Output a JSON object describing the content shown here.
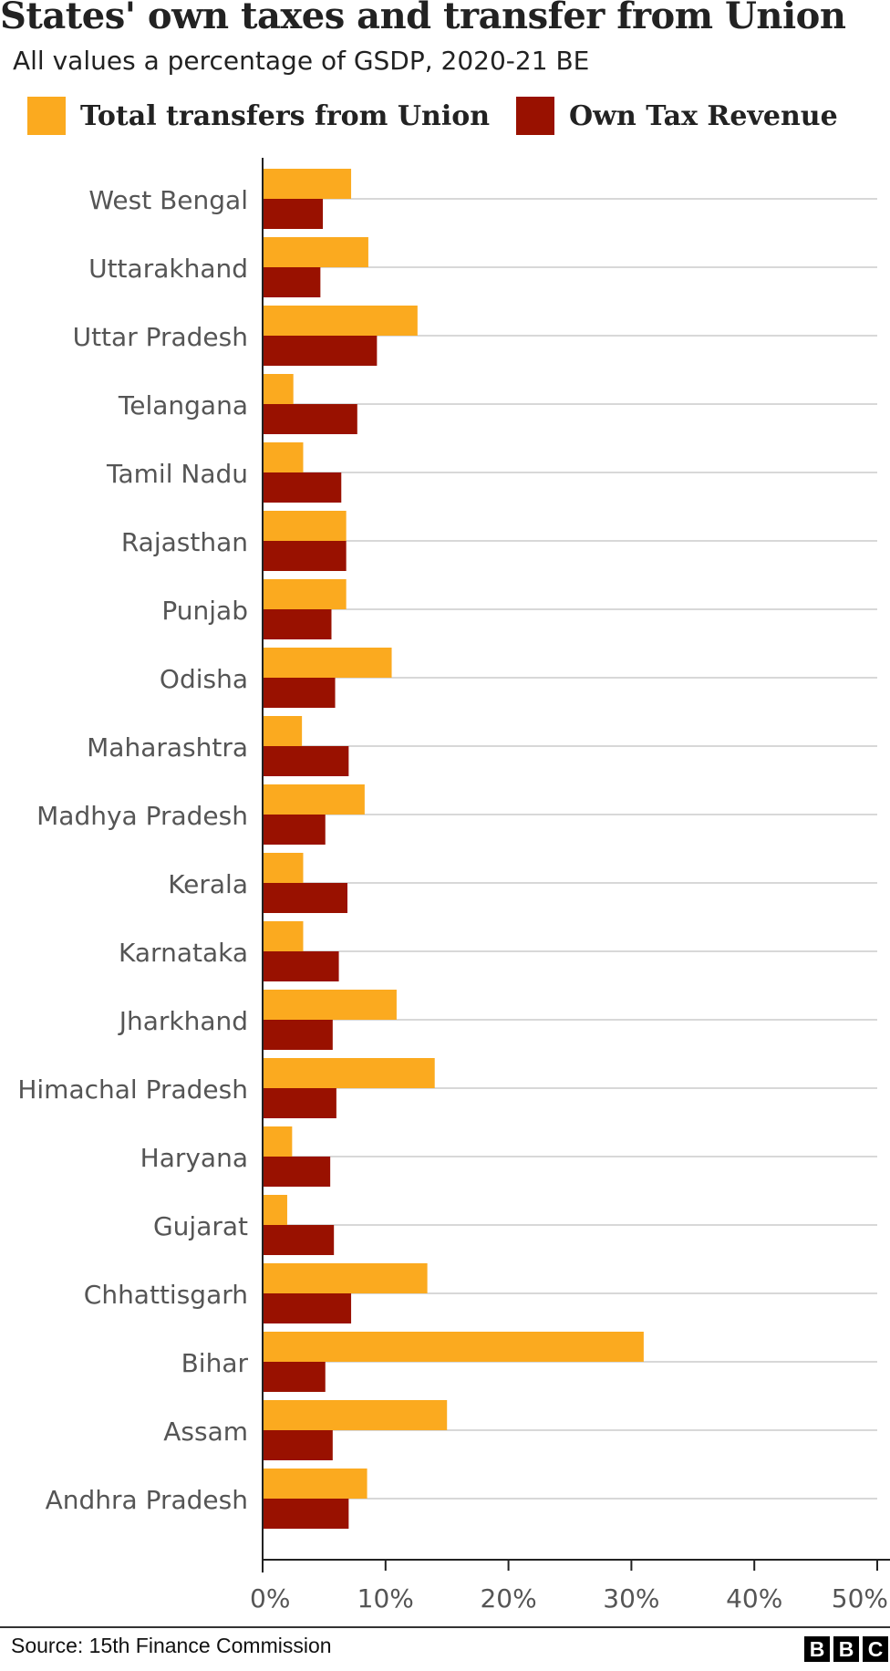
{
  "title": "States' own taxes and transfer from Union",
  "subtitle": "All values a percentage of GSDP, 2020-21 BE",
  "source": "Source: 15th Finance Commission",
  "logo": {
    "letters": [
      "B",
      "B",
      "C"
    ],
    "brand": "BBC"
  },
  "colors": {
    "transfers": "#FBAA1F",
    "own_tax": "#991100",
    "grid": "#cccccc",
    "axis": "#222222",
    "tick_text": "#555555"
  },
  "chart_data": {
    "type": "bar",
    "orientation": "horizontal",
    "title": "States' own taxes and transfer from Union",
    "subtitle": "All values a percentage of GSDP, 2020-21 BE",
    "xlabel": "",
    "ylabel": "",
    "xlim": [
      0,
      50
    ],
    "x_ticks": [
      "0%",
      "10%",
      "20%",
      "30%",
      "40%",
      "50%"
    ],
    "x_tick_values": [
      0,
      10,
      20,
      30,
      40,
      50
    ],
    "grid": true,
    "legend_position": "top",
    "categories": [
      "West Bengal",
      "Uttarakhand",
      "Uttar Pradesh",
      "Telangana",
      "Tamil Nadu",
      "Rajasthan",
      "Punjab",
      "Odisha",
      "Maharashtra",
      "Madhya Pradesh",
      "Kerala",
      "Karnataka",
      "Jharkhand",
      "Himachal Pradesh",
      "Haryana",
      "Gujarat",
      "Chhattisgarh",
      "Bihar",
      "Assam",
      "Andhra Pradesh"
    ],
    "series": [
      {
        "name": "Total transfers from Union",
        "color": "#FBAA1F",
        "values": [
          7.2,
          8.6,
          12.6,
          2.5,
          3.3,
          6.8,
          6.8,
          10.5,
          3.2,
          8.3,
          3.3,
          3.3,
          10.9,
          14.0,
          2.4,
          2.0,
          13.4,
          31.0,
          15.0,
          8.5
        ]
      },
      {
        "name": "Own Tax Revenue",
        "color": "#991100",
        "values": [
          4.9,
          4.7,
          9.3,
          7.7,
          6.4,
          6.8,
          5.6,
          5.9,
          7.0,
          5.1,
          6.9,
          6.2,
          5.7,
          6.0,
          5.5,
          5.8,
          7.2,
          5.1,
          5.7,
          7.0
        ]
      }
    ]
  }
}
